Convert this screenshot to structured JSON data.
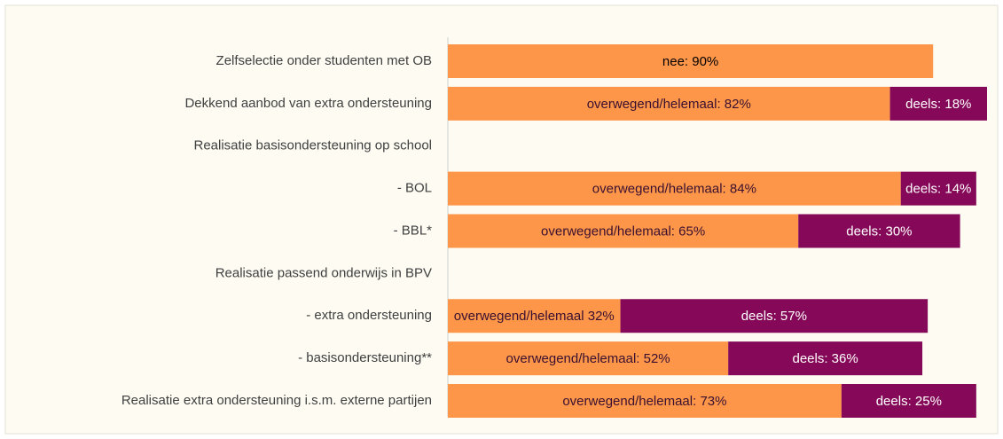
{
  "chart_data": {
    "type": "stacked-bar-horizontal",
    "categories": [
      "Zelfselectie onder studenten met OB",
      "Dekkend aanbod van extra ondersteuning",
      "Realisatie basisondersteuning op school",
      "- BOL",
      "- BBL*",
      "Realisatie passend onderwijs in BPV",
      "- extra ondersteuning",
      "- basisondersteuning**",
      "Realisatie extra ondersteuning i.s.m. externe partijen"
    ],
    "series": [
      {
        "color": "#fd9649",
        "values": [
          90,
          82,
          null,
          84,
          65,
          null,
          32,
          52,
          73
        ],
        "value_labels": [
          "nee: 90%",
          "overwegend/helemaal: 82%",
          null,
          "overwegend/helemaal: 84%",
          "overwegend/helemaal: 65%",
          null,
          "overwegend/helemaal 32%",
          "overwegend/helemaal: 52%",
          "overwegend/helemaal: 73%"
        ]
      },
      {
        "color": "#850958",
        "values": [
          null,
          18,
          null,
          14,
          30,
          null,
          57,
          36,
          25
        ],
        "value_labels": [
          null,
          "deels: 18%",
          null,
          "deels: 14%",
          "deels: 30%",
          null,
          "deels: 57%",
          "deels: 36%",
          "deels: 25%"
        ]
      }
    ],
    "xlim": [
      0,
      100
    ]
  }
}
